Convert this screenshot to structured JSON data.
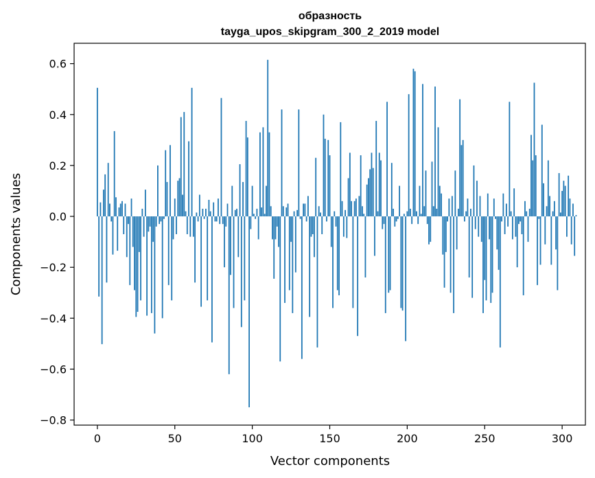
{
  "chart_data": {
    "type": "bar",
    "title_line1": "образность",
    "title_line2": "tayga_upos_skipgram_300_2_2019 model",
    "xlabel": "Vector components",
    "ylabel": "Components values",
    "xlim": [
      -15,
      315
    ],
    "ylim": [
      -0.82,
      0.68
    ],
    "xticks": [
      0,
      50,
      100,
      150,
      200,
      250,
      300
    ],
    "xtick_labels": [
      "0",
      "50",
      "100",
      "150",
      "200",
      "250",
      "300"
    ],
    "yticks": [
      -0.8,
      -0.6,
      -0.4,
      -0.2,
      0.0,
      0.2,
      0.4,
      0.6
    ],
    "ytick_labels": [
      "−0.8",
      "−0.6",
      "−0.4",
      "−0.2",
      "0.0",
      "0.2",
      "0.4",
      "0.6"
    ],
    "bar_color": "#1f77b4",
    "grid": false,
    "values": [
      0.505,
      -0.315,
      0.055,
      -0.502,
      0.105,
      0.165,
      -0.26,
      0.21,
      0.05,
      -0.02,
      -0.15,
      0.335,
      0.075,
      -0.135,
      0.035,
      0.05,
      0.06,
      -0.07,
      0.05,
      -0.16,
      -0.03,
      -0.27,
      0.07,
      -0.12,
      -0.29,
      -0.395,
      -0.375,
      -0.14,
      -0.33,
      0.03,
      -0.08,
      0.105,
      -0.39,
      -0.06,
      -0.04,
      -0.38,
      -0.1,
      -0.46,
      -0.04,
      0.2,
      -0.03,
      -0.02,
      -0.4,
      -0.01,
      0.26,
      0.135,
      -0.27,
      0.28,
      -0.33,
      -0.09,
      0.07,
      -0.07,
      0.14,
      0.15,
      0.39,
      0.085,
      0.41,
      0.02,
      -0.07,
      0.295,
      -0.08,
      0.505,
      -0.08,
      -0.26,
      0.015,
      -0.02,
      0.085,
      -0.355,
      0.03,
      -0.01,
      0.03,
      -0.33,
      0.065,
      0.02,
      -0.495,
      0.055,
      -0.02,
      -0.02,
      0.07,
      -0.03,
      0.465,
      -0.03,
      -0.2,
      -0.04,
      0.05,
      -0.62,
      -0.23,
      0.12,
      -0.36,
      0.025,
      0.03,
      -0.16,
      0.205,
      -0.435,
      0.135,
      -0.33,
      0.375,
      0.31,
      -0.75,
      -0.05,
      0.12,
      0.01,
      -0.01,
      0.03,
      -0.09,
      0.33,
      0.035,
      0.35,
      0.01,
      0.12,
      0.615,
      0.33,
      0.04,
      -0.09,
      -0.245,
      -0.09,
      -0.04,
      -0.12,
      -0.57,
      0.42,
      0.04,
      -0.34,
      0.035,
      0.05,
      -0.29,
      -0.1,
      -0.38,
      0.02,
      -0.22,
      0.025,
      0.42,
      -0.01,
      -0.56,
      0.05,
      0.05,
      -0.02,
      0.08,
      -0.395,
      -0.08,
      -0.07,
      -0.16,
      0.23,
      -0.515,
      0.04,
      0.015,
      -0.07,
      0.4,
      0.305,
      -0.02,
      0.3,
      0.24,
      -0.12,
      -0.36,
      0.02,
      -0.04,
      -0.29,
      -0.31,
      0.37,
      0.06,
      -0.08,
      0.025,
      -0.085,
      0.15,
      0.25,
      0.06,
      -0.36,
      0.06,
      0.07,
      -0.47,
      0.08,
      0.24,
      0.04,
      0.01,
      -0.24,
      0.125,
      0.15,
      0.185,
      0.25,
      0.19,
      -0.155,
      0.375,
      0.02,
      0.25,
      0.22,
      -0.05,
      -0.03,
      -0.38,
      0.45,
      -0.3,
      -0.29,
      0.21,
      0.03,
      -0.04,
      -0.02,
      -0.01,
      0.12,
      -0.36,
      -0.37,
      0.01,
      -0.49,
      0.02,
      0.48,
      0.03,
      -0.03,
      0.58,
      0.57,
      0.02,
      -0.03,
      0.12,
      0.01,
      0.52,
      0.04,
      0.18,
      -0.03,
      -0.11,
      -0.1,
      0.215,
      0.04,
      0.51,
      0.03,
      0.35,
      0.12,
      0.09,
      -0.15,
      -0.28,
      -0.14,
      -0.02,
      0.07,
      -0.3,
      0.08,
      -0.38,
      0.18,
      -0.13,
      0.03,
      0.46,
      0.28,
      0.3,
      -0.02,
      0.02,
      0.07,
      -0.24,
      0.03,
      -0.32,
      0.2,
      -0.05,
      0.14,
      -0.08,
      0.08,
      -0.1,
      -0.38,
      -0.25,
      -0.33,
      0.09,
      -0.09,
      -0.34,
      -0.3,
      0.07,
      -0.01,
      -0.13,
      -0.21,
      -0.515,
      -0.02,
      0.09,
      -0.07,
      0.05,
      -0.04,
      0.45,
      0.02,
      -0.09,
      0.11,
      -0.08,
      -0.2,
      -0.03,
      -0.02,
      -0.07,
      -0.31,
      0.06,
      0.02,
      -0.1,
      0.03,
      0.32,
      0.22,
      0.525,
      0.24,
      -0.27,
      -0.01,
      -0.19,
      0.36,
      0.13,
      -0.11,
      0.04,
      0.22,
      0.08,
      -0.19,
      0.02,
      0.06,
      -0.13,
      -0.29,
      0.17,
      0.015,
      0.1,
      0.14,
      0.12,
      -0.08,
      0.16,
      0.07,
      -0.11,
      0.05,
      -0.155,
      0.005
    ]
  }
}
